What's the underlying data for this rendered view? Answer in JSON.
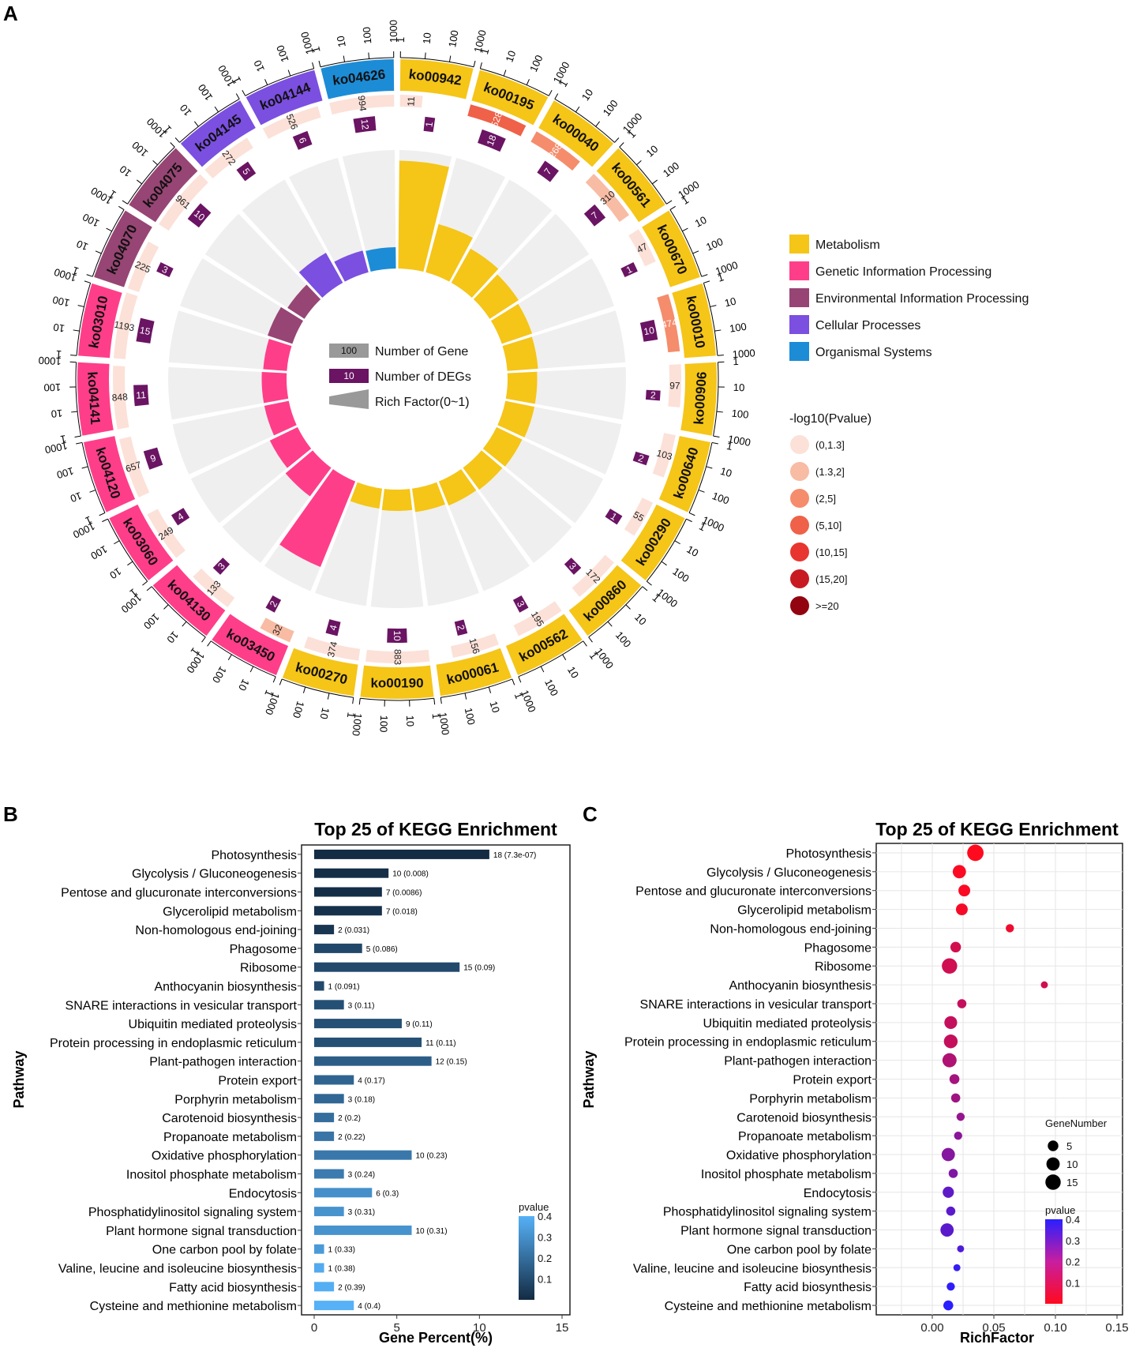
{
  "panel_labels": {
    "a": "A",
    "b": "B",
    "c": "C"
  },
  "circos": {
    "category_colors": {
      "Metabolism": "#F5C518",
      "Genetic Information Processing": "#FF3E8A",
      "Environmental Information Processing": "#974574",
      "Cellular Processes": "#7B4FE0",
      "Organismal Systems": "#1D8CD6"
    },
    "pvalue_colors": [
      "#FCE1D8",
      "#F8BBA3",
      "#F58C6C",
      "#EF6148",
      "#E83530",
      "#C71B21",
      "#920510"
    ],
    "deg_color": "#6A1463",
    "track_bg": "#EFEFEF",
    "scale_ticks": [
      "1",
      "10",
      "100",
      "1000"
    ],
    "inner_legend": {
      "gene_value": "100",
      "gene_label": "Number of Gene",
      "deg_value": "10",
      "deg_label": "Number of DEGs",
      "rich_label": "Rich Factor(0~1)"
    },
    "category_legend": [
      "Metabolism",
      "Genetic Information Processing",
      "Environmental Information Processing",
      "Cellular Processes",
      "Organismal Systems"
    ],
    "pvalue_legend_title": "-log10(Pvalue)",
    "pvalue_legend": [
      "(0,1.3]",
      "(1.3,2]",
      "(2,5]",
      "(5,10]",
      "(10,15]",
      "(15,20]",
      ">=20"
    ],
    "pathways": [
      {
        "id": "ko00942",
        "category": "Metabolism",
        "genes": "11",
        "degs": "1",
        "rich": 0.91,
        "pcat": 0
      },
      {
        "id": "ko00195",
        "category": "Metabolism",
        "genes": "528",
        "degs": "18",
        "rich": 0.42,
        "pcat": 3
      },
      {
        "id": "ko00040",
        "category": "Metabolism",
        "genes": "268",
        "degs": "7",
        "rich": 0.33,
        "pcat": 2
      },
      {
        "id": "ko00561",
        "category": "Metabolism",
        "genes": "310",
        "degs": "7",
        "rich": 0.29,
        "pcat": 1
      },
      {
        "id": "ko00670",
        "category": "Metabolism",
        "genes": "47",
        "degs": "1",
        "rich": 0.27,
        "pcat": 0
      },
      {
        "id": "ko00010",
        "category": "Metabolism",
        "genes": "474",
        "degs": "10",
        "rich": 0.26,
        "pcat": 2
      },
      {
        "id": "ko00906",
        "category": "Metabolism",
        "genes": "97",
        "degs": "2",
        "rich": 0.25,
        "pcat": 0
      },
      {
        "id": "ko00640",
        "category": "Metabolism",
        "genes": "103",
        "degs": "2",
        "rich": 0.25,
        "pcat": 0
      },
      {
        "id": "ko00290",
        "category": "Metabolism",
        "genes": "55",
        "degs": "1",
        "rich": 0.24,
        "pcat": 0
      },
      {
        "id": "ko00860",
        "category": "Metabolism",
        "genes": "172",
        "degs": "3",
        "rich": 0.23,
        "pcat": 0
      },
      {
        "id": "ko00562",
        "category": "Metabolism",
        "genes": "195",
        "degs": "3",
        "rich": 0.22,
        "pcat": 0
      },
      {
        "id": "ko00061",
        "category": "Metabolism",
        "genes": "156",
        "degs": "2",
        "rich": 0.2,
        "pcat": 0
      },
      {
        "id": "ko00190",
        "category": "Metabolism",
        "genes": "883",
        "degs": "10",
        "rich": 0.18,
        "pcat": 0
      },
      {
        "id": "ko00270",
        "category": "Metabolism",
        "genes": "374",
        "degs": "4",
        "rich": 0.17,
        "pcat": 0
      },
      {
        "id": "ko03450",
        "category": "Genetic Information Processing",
        "genes": "32",
        "degs": "2",
        "rich": 0.78,
        "pcat": 1
      },
      {
        "id": "ko04130",
        "category": "Genetic Information Processing",
        "genes": "133",
        "degs": "3",
        "rich": 0.3,
        "pcat": 0
      },
      {
        "id": "ko03060",
        "category": "Genetic Information Processing",
        "genes": "249",
        "degs": "4",
        "rich": 0.26,
        "pcat": 0
      },
      {
        "id": "ko04120",
        "category": "Genetic Information Processing",
        "genes": "657",
        "degs": "9",
        "rich": 0.21,
        "pcat": 0
      },
      {
        "id": "ko04141",
        "category": "Genetic Information Processing",
        "genes": "848",
        "degs": "11",
        "rich": 0.21,
        "pcat": 0
      },
      {
        "id": "ko03010",
        "category": "Genetic Information Processing",
        "genes": "1193",
        "degs": "15",
        "rich": 0.2,
        "pcat": 0
      },
      {
        "id": "ko04070",
        "category": "Environmental Information Processing",
        "genes": "225",
        "degs": "3",
        "rich": 0.22,
        "pcat": 0
      },
      {
        "id": "ko04075",
        "category": "Environmental Information Processing",
        "genes": "961",
        "degs": "10",
        "rich": 0.17,
        "pcat": 0
      },
      {
        "id": "ko04145",
        "category": "Cellular Processes",
        "genes": "272",
        "degs": "5",
        "rich": 0.29,
        "pcat": 0
      },
      {
        "id": "ko04144",
        "category": "Cellular Processes",
        "genes": "526",
        "degs": "6",
        "rich": 0.19,
        "pcat": 0
      },
      {
        "id": "ko04626",
        "category": "Organismal Systems",
        "genes": "994",
        "degs": "12",
        "rich": 0.18,
        "pcat": 0
      }
    ]
  },
  "chart_data": [
    {
      "type": "bar",
      "orientation": "horizontal",
      "title": "Top 25 of KEGG Enrichment",
      "xlabel": "Gene Percent(%)",
      "ylabel": "Pathway",
      "xlim": [
        0,
        15
      ],
      "xticks": [
        "0",
        "5",
        "10",
        "15"
      ],
      "colorbar": {
        "title": "pvalue",
        "ticks": [
          "0.1",
          "0.2",
          "0.3",
          "0.4"
        ],
        "range": [
          0,
          0.4
        ],
        "low_color": "#132B43",
        "high_color": "#56B1F7"
      },
      "categories": [
        "Photosynthesis",
        "Glycolysis / Gluconeogenesis",
        "Pentose and glucuronate interconversions",
        "Glycerolipid metabolism",
        "Non-homologous end-joining",
        "Phagosome",
        "Ribosome",
        "Anthocyanin biosynthesis",
        "SNARE interactions in vesicular transport",
        "Ubiquitin mediated proteolysis",
        "Protein processing in endoplasmic reticulum",
        "Plant-pathogen interaction",
        "Protein export",
        "Porphyrin metabolism",
        "Carotenoid biosynthesis",
        "Propanoate metabolism",
        "Oxidative phosphorylation",
        "Inositol phosphate metabolism",
        "Endocytosis",
        "Phosphatidylinositol signaling system",
        "Plant hormone signal transduction",
        "One carbon pool by folate",
        "Valine, leucine and isoleucine biosynthesis",
        "Fatty acid biosynthesis",
        "Cysteine and methionine metabolism"
      ],
      "values": [
        10.6,
        4.5,
        4.1,
        4.1,
        1.2,
        2.9,
        8.8,
        0.6,
        1.8,
        5.3,
        6.5,
        7.1,
        2.4,
        1.8,
        1.2,
        1.2,
        5.9,
        1.8,
        3.5,
        1.8,
        5.9,
        0.6,
        0.6,
        1.2,
        2.4
      ],
      "gene_counts": [
        18,
        10,
        7,
        7,
        2,
        5,
        15,
        1,
        3,
        9,
        11,
        12,
        4,
        3,
        2,
        2,
        10,
        3,
        6,
        3,
        10,
        1,
        1,
        2,
        4
      ],
      "pvalues": [
        7.3e-07,
        0.008,
        0.0086,
        0.018,
        0.031,
        0.086,
        0.09,
        0.091,
        0.11,
        0.11,
        0.11,
        0.15,
        0.17,
        0.18,
        0.2,
        0.22,
        0.23,
        0.24,
        0.3,
        0.31,
        0.31,
        0.33,
        0.38,
        0.39,
        0.4
      ],
      "data_labels": [
        "18 (7.3e-07)",
        "10 (0.008)",
        "7 (0.0086)",
        "7 (0.018)",
        "2 (0.031)",
        "5 (0.086)",
        "15 (0.09)",
        "1 (0.091)",
        "3 (0.11)",
        "9 (0.11)",
        "11 (0.11)",
        "12 (0.15)",
        "4 (0.17)",
        "3 (0.18)",
        "2 (0.2)",
        "2 (0.22)",
        "10 (0.23)",
        "3 (0.24)",
        "6 (0.3)",
        "3 (0.31)",
        "10 (0.31)",
        "1 (0.33)",
        "1 (0.38)",
        "2 (0.39)",
        "4 (0.4)"
      ]
    },
    {
      "type": "scatter",
      "title": "Top 25 of KEGG Enrichment",
      "xlabel": "RichFactor",
      "ylabel": "Pathway",
      "xlim": [
        -0.05,
        0.15
      ],
      "xticks": [
        "0.00",
        "0.05",
        "0.10",
        "0.15"
      ],
      "x": [
        0.035,
        0.022,
        0.026,
        0.024,
        0.063,
        0.019,
        0.014,
        0.091,
        0.024,
        0.015,
        0.015,
        0.014,
        0.018,
        0.019,
        0.023,
        0.021,
        0.013,
        0.017,
        0.013,
        0.015,
        0.012,
        0.023,
        0.02,
        0.015,
        0.013
      ],
      "gene_counts": [
        18,
        10,
        7,
        7,
        2,
        5,
        15,
        1,
        3,
        9,
        11,
        12,
        4,
        3,
        2,
        2,
        10,
        3,
        6,
        3,
        10,
        1,
        1,
        2,
        4
      ],
      "pvalues": [
        7.3e-07,
        0.008,
        0.0086,
        0.018,
        0.031,
        0.086,
        0.09,
        0.091,
        0.11,
        0.11,
        0.11,
        0.15,
        0.17,
        0.18,
        0.2,
        0.22,
        0.23,
        0.24,
        0.3,
        0.31,
        0.31,
        0.33,
        0.38,
        0.39,
        0.4
      ],
      "size_legend": {
        "title": "GeneNumber",
        "values": [
          "5",
          "10",
          "15"
        ]
      },
      "colorbar": {
        "title": "pvalue",
        "ticks": [
          "0.1",
          "0.2",
          "0.3",
          "0.4"
        ],
        "range": [
          0,
          0.4
        ],
        "low_color": "#FF0A1E",
        "high_color": "#2A1FFF"
      }
    }
  ]
}
